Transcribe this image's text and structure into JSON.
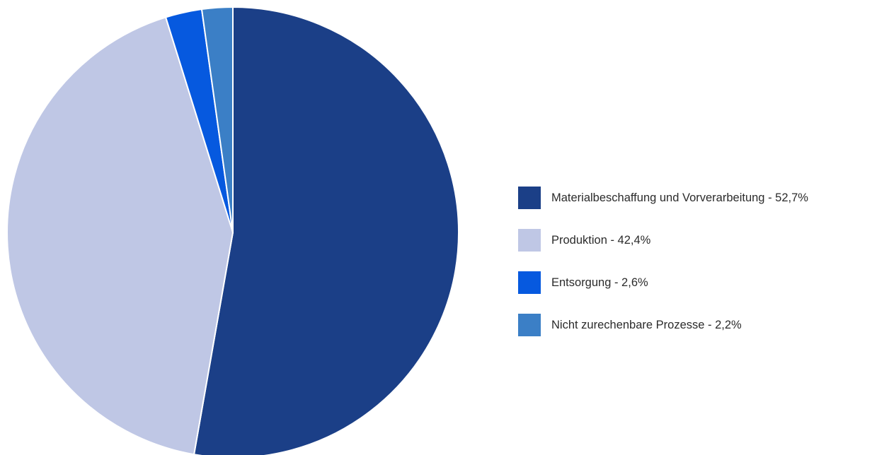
{
  "chart_data": {
    "type": "pie",
    "title": "",
    "slices": [
      {
        "label": "Materialbeschaffung und Vorverarbeitung - 52,7%",
        "value": 52.7,
        "color": "#1b3f87"
      },
      {
        "label": "Produktion - 42,4%",
        "value": 42.4,
        "color": "#bfc7e5"
      },
      {
        "label": "Entsorgung - 2,6%",
        "value": 2.6,
        "color": "#0659df"
      },
      {
        "label": "Nicht zurechenbare Prozesse - 2,2%",
        "value": 2.2,
        "color": "#3b7fc6"
      }
    ],
    "legend_position": "right",
    "start_angle": "top",
    "direction": "clockwise"
  }
}
